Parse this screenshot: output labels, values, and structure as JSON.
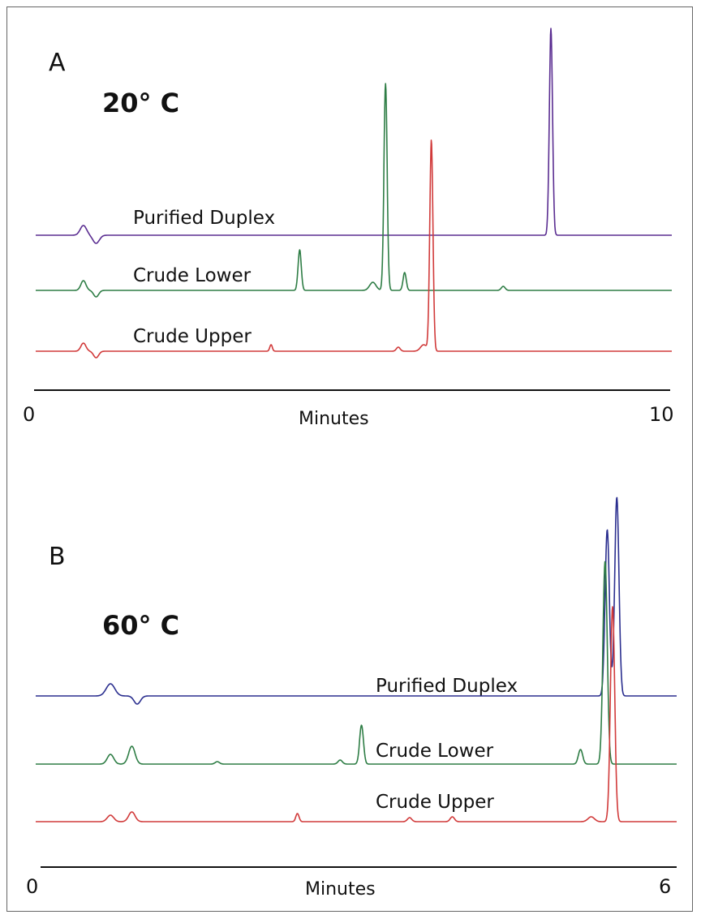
{
  "chart_data": [
    {
      "type": "line",
      "panel": "A",
      "title": "20° C",
      "xlabel": "Minutes",
      "xlim": [
        0,
        10
      ],
      "x_tick_labels": [
        "0",
        "10"
      ],
      "series": [
        {
          "name": "Purified Duplex",
          "color": "#5a2d91",
          "baseline": 0.0,
          "peaks": [
            {
              "x": 0.75,
              "h": 0.12,
              "w": 0.05
            },
            {
              "x": 0.95,
              "h": -0.1,
              "w": 0.05
            },
            {
              "x": 8.1,
              "h": 2.55,
              "w": 0.025
            }
          ]
        },
        {
          "name": "Crude Lower",
          "color": "#2e7d45",
          "baseline": 0.0,
          "peaks": [
            {
              "x": 0.75,
              "h": 0.12,
              "w": 0.04
            },
            {
              "x": 0.95,
              "h": -0.08,
              "w": 0.04
            },
            {
              "x": 4.15,
              "h": 0.5,
              "w": 0.025
            },
            {
              "x": 5.3,
              "h": 0.1,
              "w": 0.05
            },
            {
              "x": 5.5,
              "h": 2.55,
              "w": 0.025
            },
            {
              "x": 5.8,
              "h": 0.22,
              "w": 0.025
            },
            {
              "x": 7.35,
              "h": 0.05,
              "w": 0.03
            }
          ]
        },
        {
          "name": "Crude Upper",
          "color": "#d13a3a",
          "baseline": 0.0,
          "peaks": [
            {
              "x": 0.75,
              "h": 0.1,
              "w": 0.04
            },
            {
              "x": 0.95,
              "h": -0.08,
              "w": 0.04
            },
            {
              "x": 3.7,
              "h": 0.08,
              "w": 0.02
            },
            {
              "x": 5.7,
              "h": 0.05,
              "w": 0.03
            },
            {
              "x": 6.1,
              "h": 0.08,
              "w": 0.05
            },
            {
              "x": 6.22,
              "h": 2.6,
              "w": 0.025
            }
          ]
        }
      ]
    },
    {
      "type": "line",
      "panel": "B",
      "title": "60° C",
      "xlabel": "Minutes",
      "xlim": [
        0,
        6
      ],
      "x_tick_labels": [
        "0",
        "6"
      ],
      "series": [
        {
          "name": "Purified Duplex",
          "color": "#2b2f8f",
          "baseline": 0.0,
          "peaks": [
            {
              "x": 0.7,
              "h": 0.15,
              "w": 0.04
            },
            {
              "x": 0.95,
              "h": -0.1,
              "w": 0.03
            },
            {
              "x": 5.35,
              "h": 2.05,
              "w": 0.02
            },
            {
              "x": 5.44,
              "h": 2.45,
              "w": 0.02
            }
          ]
        },
        {
          "name": "Crude Lower",
          "color": "#2e7d45",
          "baseline": 0.0,
          "peaks": [
            {
              "x": 0.7,
              "h": 0.12,
              "w": 0.03
            },
            {
              "x": 0.9,
              "h": 0.22,
              "w": 0.03
            },
            {
              "x": 1.7,
              "h": 0.03,
              "w": 0.02
            },
            {
              "x": 2.85,
              "h": 0.05,
              "w": 0.02
            },
            {
              "x": 3.05,
              "h": 0.48,
              "w": 0.018
            },
            {
              "x": 5.1,
              "h": 0.18,
              "w": 0.02
            },
            {
              "x": 5.33,
              "h": 2.5,
              "w": 0.02
            }
          ]
        },
        {
          "name": "Crude Upper",
          "color": "#d13a3a",
          "baseline": 0.0,
          "peaks": [
            {
              "x": 0.7,
              "h": 0.08,
              "w": 0.03
            },
            {
              "x": 0.9,
              "h": 0.12,
              "w": 0.03
            },
            {
              "x": 2.45,
              "h": 0.1,
              "w": 0.015
            },
            {
              "x": 3.5,
              "h": 0.05,
              "w": 0.02
            },
            {
              "x": 3.9,
              "h": 0.06,
              "w": 0.02
            },
            {
              "x": 5.2,
              "h": 0.06,
              "w": 0.03
            },
            {
              "x": 5.4,
              "h": 2.65,
              "w": 0.02
            }
          ]
        }
      ]
    }
  ]
}
